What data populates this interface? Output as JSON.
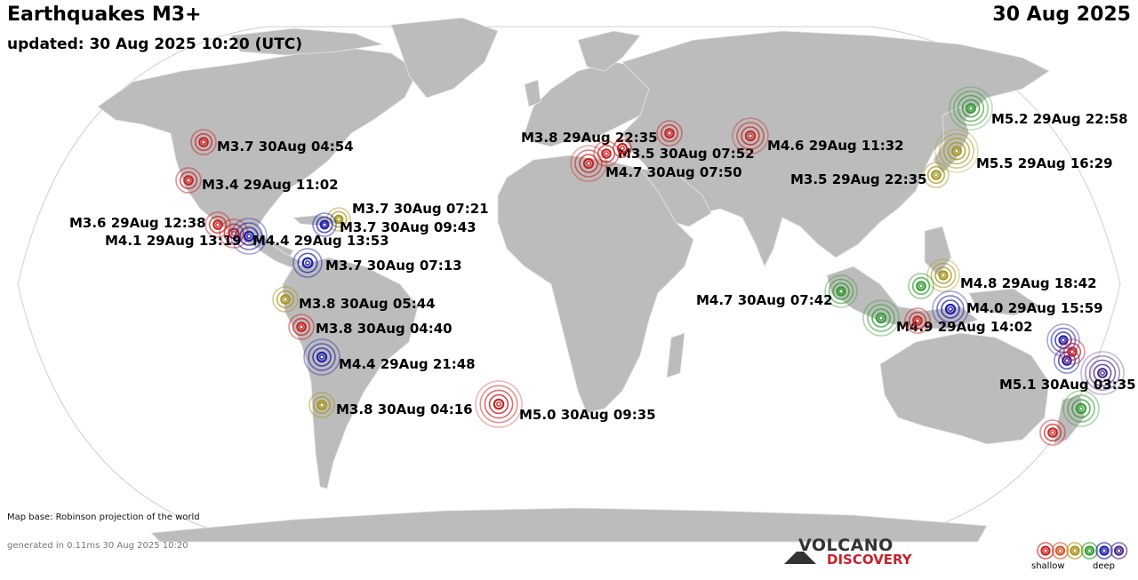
{
  "header": {
    "title": "Earthquakes M3+",
    "updated": "updated: 30 Aug 2025 10:20 (UTC)",
    "date": "30 Aug 2025"
  },
  "footer": {
    "map_base": "Map base: Robinson projection of the world",
    "generated": "generated in 0.11ms 30 Aug 2025 10:20"
  },
  "logo": {
    "line1": "VOLCANO",
    "line2": "DISCOVERY"
  },
  "legend": {
    "shallow": "shallow",
    "deep": "deep"
  },
  "colors": {
    "ocean": "#ffffff",
    "land": "#bcbcbc",
    "border": "#e6e6e6",
    "shallow": "#cc2222",
    "intermediate": "#d55a2a",
    "medium": "#a8961e",
    "mid_deep": "#2f9e2f",
    "deep": "#1f1fb0",
    "very_deep": "#4a2a8a"
  },
  "quakes": [
    {
      "label": "M3.7 30Aug 04:54",
      "depth": "shallow"
    },
    {
      "label": "M3.4 29Aug 11:02",
      "depth": "shallow"
    },
    {
      "label": "M3.6 29Aug 12:38",
      "depth": "shallow"
    },
    {
      "label": "M4.1 29Aug 13:19",
      "depth": "shallow"
    },
    {
      "label": "M4.4 29Aug 13:53",
      "depth": "deep"
    },
    {
      "label": "M3.7 30Aug 07:21",
      "depth": "medium"
    },
    {
      "label": "M3.7 30Aug 09:43",
      "depth": "deep"
    },
    {
      "label": "M3.7 30Aug 07:13",
      "depth": "deep"
    },
    {
      "label": "M3.8 30Aug 05:44",
      "depth": "medium"
    },
    {
      "label": "M3.8 30Aug 04:40",
      "depth": "shallow"
    },
    {
      "label": "M4.4 29Aug 21:48",
      "depth": "deep"
    },
    {
      "label": "M3.8 30Aug 04:16",
      "depth": "medium"
    },
    {
      "label": "M5.0 30Aug 09:35",
      "depth": "shallow"
    },
    {
      "label": "M3.8 29Aug 22:35",
      "depth": "shallow"
    },
    {
      "label": "M3.5 30Aug 07:52",
      "depth": "shallow"
    },
    {
      "label": "M4.7 30Aug 07:50",
      "depth": "shallow"
    },
    {
      "label": "M4.6 29Aug 11:32",
      "depth": "shallow"
    },
    {
      "label": "M5.2 29Aug 22:58",
      "depth": "mid_deep"
    },
    {
      "label": "M5.5 29Aug 16:29",
      "depth": "medium"
    },
    {
      "label": "M3.5 29Aug 22:35",
      "depth": "medium"
    },
    {
      "label": "M4.8 29Aug 18:42",
      "depth": "medium"
    },
    {
      "label": "M4.7 30Aug 07:42",
      "depth": "mid_deep"
    },
    {
      "label": "M4.0 29Aug 15:59",
      "depth": "deep"
    },
    {
      "label": "M4.9 29Aug 14:02",
      "depth": "mid_deep"
    },
    {
      "label": "M5.1 30Aug 03:35",
      "depth": "very_deep"
    },
    {
      "label": "",
      "depth": "mid_deep"
    },
    {
      "label": "",
      "depth": "mid_deep"
    },
    {
      "label": "",
      "depth": "deep"
    },
    {
      "label": "",
      "depth": "deep"
    },
    {
      "label": "",
      "depth": "shallow"
    },
    {
      "label": "",
      "depth": "shallow"
    },
    {
      "label": "",
      "depth": "shallow"
    },
    {
      "label": "",
      "depth": "shallow"
    }
  ]
}
